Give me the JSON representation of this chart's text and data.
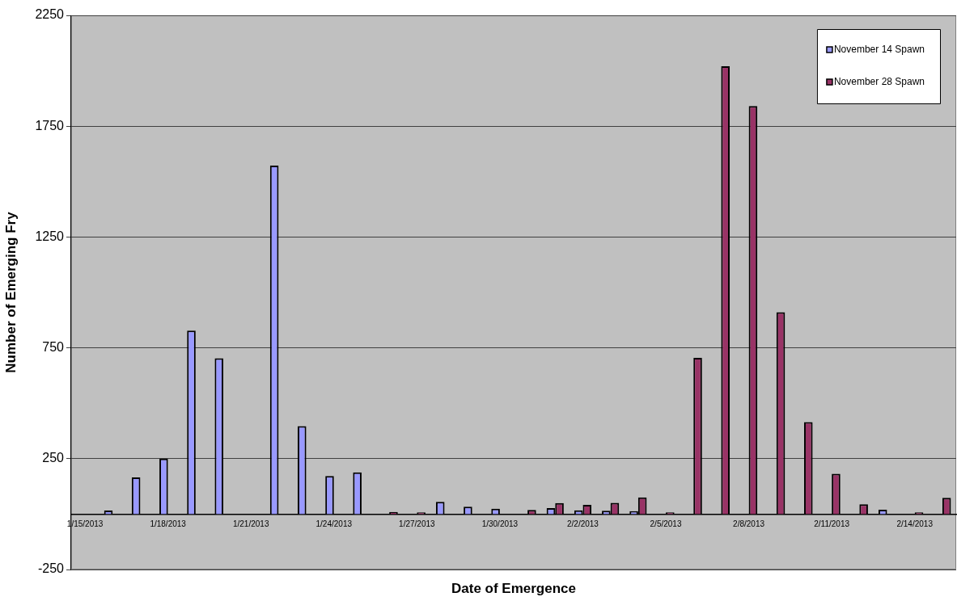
{
  "chart_data": {
    "type": "bar",
    "xlabel": "Date of Emergence",
    "ylabel": "Number of Emerging Fry",
    "categories": [
      "1/15/2013",
      null,
      null,
      "1/18/2013",
      null,
      null,
      "1/21/2013",
      null,
      null,
      "1/24/2013",
      null,
      null,
      "1/27/2013",
      null,
      null,
      "1/30/2013",
      null,
      null,
      "2/2/2013",
      null,
      null,
      "2/5/2013",
      null,
      null,
      "2/8/2013",
      null,
      null,
      "2/11/2013",
      null,
      null,
      "2/14/2013",
      null
    ],
    "series": [
      {
        "name": "November 14 Spawn",
        "color": "#9999ff",
        "values": [
          null,
          16,
          165,
          250,
          828,
          703,
          null,
          1572,
          397,
          172,
          188,
          null,
          null,
          55,
          33,
          24,
          null,
          27,
          17,
          15,
          13,
          null,
          null,
          null,
          null,
          null,
          null,
          null,
          null,
          20,
          null,
          null
        ]
      },
      {
        "name": "November 28 Spawn",
        "color": "#993366",
        "values": [
          null,
          null,
          null,
          null,
          null,
          null,
          null,
          null,
          null,
          null,
          null,
          10,
          8,
          null,
          null,
          null,
          19,
          50,
          42,
          51,
          75,
          8,
          705,
          2020,
          1841,
          911,
          415,
          182,
          44,
          null,
          8,
          73
        ]
      }
    ],
    "ylim": [
      -250,
      2250
    ],
    "yticks": [
      -250,
      250,
      750,
      1250,
      1750,
      2250
    ],
    "grid": "y",
    "legend": "top right"
  }
}
